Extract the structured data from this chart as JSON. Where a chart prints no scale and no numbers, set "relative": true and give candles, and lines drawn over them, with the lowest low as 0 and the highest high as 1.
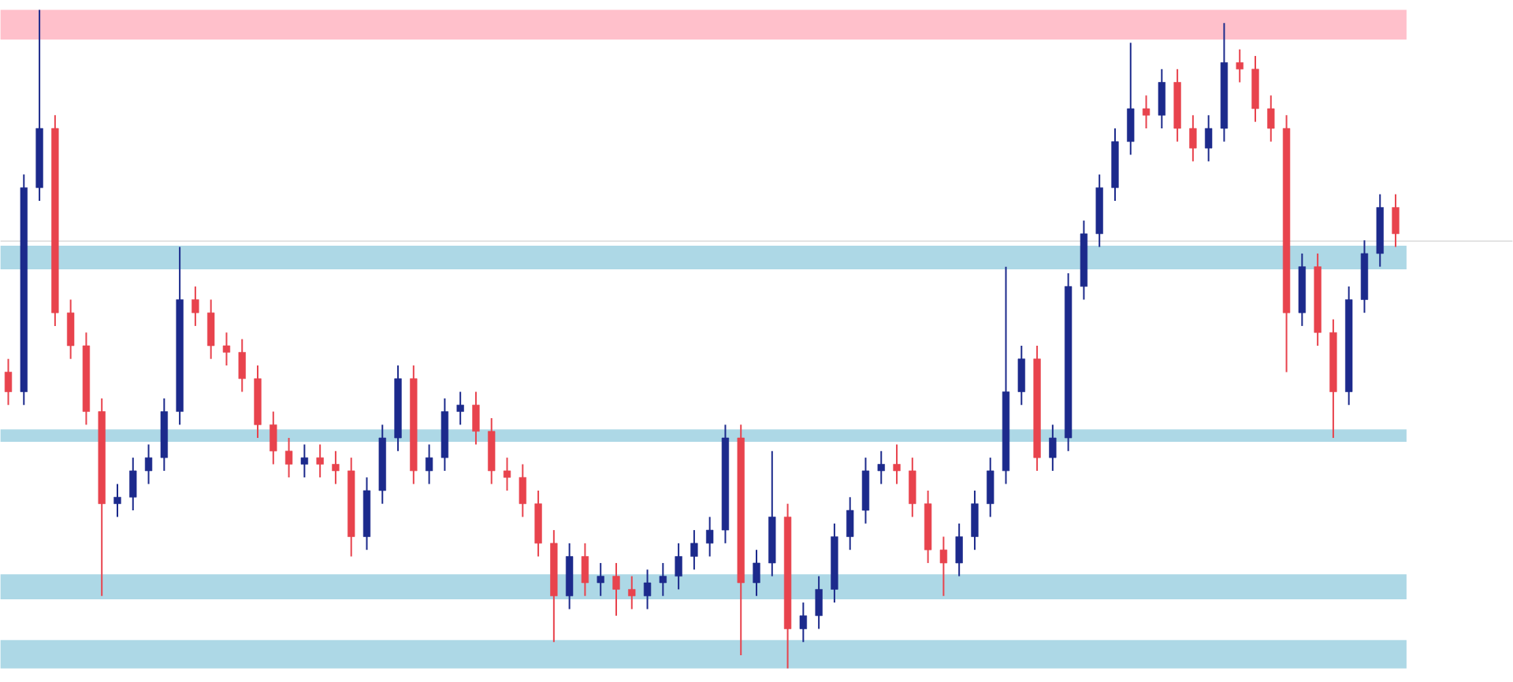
{
  "chart_data": {
    "type": "candlestick",
    "relative": true,
    "categories": [
      null,
      null,
      null,
      null,
      null,
      null,
      null,
      null,
      null,
      null,
      null,
      null,
      null,
      null,
      null,
      null,
      null,
      null,
      null,
      null,
      null,
      null,
      null,
      null,
      null,
      null,
      null,
      null,
      null,
      null,
      null,
      null,
      null,
      null,
      null,
      null,
      null,
      null,
      null,
      null,
      null,
      null,
      null,
      null,
      null,
      null,
      null,
      null,
      null,
      null,
      null,
      null,
      null,
      null,
      null,
      null,
      null,
      null,
      null,
      null,
      null,
      null,
      null,
      null,
      null,
      null,
      null,
      null,
      null,
      null,
      null,
      null,
      null,
      null,
      null,
      null,
      null,
      null,
      null,
      null,
      null,
      null,
      null,
      null,
      null,
      null,
      null,
      null,
      null,
      null
    ],
    "ohlc": [
      [
        0.45,
        0.47,
        0.4,
        0.42
      ],
      [
        0.42,
        0.75,
        0.4,
        0.73
      ],
      [
        0.73,
        1.0,
        0.71,
        0.82
      ],
      [
        0.82,
        0.84,
        0.52,
        0.54
      ],
      [
        0.54,
        0.56,
        0.47,
        0.49
      ],
      [
        0.49,
        0.51,
        0.37,
        0.39
      ],
      [
        0.39,
        0.41,
        0.11,
        0.25
      ],
      [
        0.25,
        0.28,
        0.23,
        0.26
      ],
      [
        0.26,
        0.32,
        0.24,
        0.3
      ],
      [
        0.3,
        0.34,
        0.28,
        0.32
      ],
      [
        0.32,
        0.41,
        0.3,
        0.39
      ],
      [
        0.39,
        0.64,
        0.37,
        0.56
      ],
      [
        0.56,
        0.58,
        0.52,
        0.54
      ],
      [
        0.54,
        0.56,
        0.47,
        0.49
      ],
      [
        0.49,
        0.51,
        0.46,
        0.48
      ],
      [
        0.48,
        0.5,
        0.42,
        0.44
      ],
      [
        0.44,
        0.46,
        0.35,
        0.37
      ],
      [
        0.37,
        0.39,
        0.31,
        0.33
      ],
      [
        0.33,
        0.35,
        0.29,
        0.31
      ],
      [
        0.31,
        0.34,
        0.29,
        0.32
      ],
      [
        0.32,
        0.34,
        0.29,
        0.31
      ],
      [
        0.31,
        0.33,
        0.28,
        0.3
      ],
      [
        0.3,
        0.32,
        0.17,
        0.2
      ],
      [
        0.2,
        0.29,
        0.18,
        0.27
      ],
      [
        0.27,
        0.37,
        0.25,
        0.35
      ],
      [
        0.35,
        0.46,
        0.33,
        0.44
      ],
      [
        0.44,
        0.46,
        0.28,
        0.3
      ],
      [
        0.3,
        0.34,
        0.28,
        0.32
      ],
      [
        0.32,
        0.41,
        0.3,
        0.39
      ],
      [
        0.39,
        0.42,
        0.37,
        0.4
      ],
      [
        0.4,
        0.42,
        0.34,
        0.36
      ],
      [
        0.36,
        0.38,
        0.28,
        0.3
      ],
      [
        0.3,
        0.32,
        0.27,
        0.29
      ],
      [
        0.29,
        0.31,
        0.23,
        0.25
      ],
      [
        0.25,
        0.27,
        0.17,
        0.19
      ],
      [
        0.19,
        0.21,
        0.04,
        0.11
      ],
      [
        0.11,
        0.19,
        0.09,
        0.17
      ],
      [
        0.17,
        0.19,
        0.11,
        0.13
      ],
      [
        0.13,
        0.16,
        0.11,
        0.14
      ],
      [
        0.14,
        0.16,
        0.08,
        0.12
      ],
      [
        0.12,
        0.14,
        0.09,
        0.11
      ],
      [
        0.11,
        0.15,
        0.09,
        0.13
      ],
      [
        0.13,
        0.16,
        0.11,
        0.14
      ],
      [
        0.14,
        0.19,
        0.12,
        0.17
      ],
      [
        0.17,
        0.21,
        0.15,
        0.19
      ],
      [
        0.19,
        0.23,
        0.17,
        0.21
      ],
      [
        0.21,
        0.37,
        0.19,
        0.35
      ],
      [
        0.35,
        0.37,
        0.02,
        0.13
      ],
      [
        0.13,
        0.18,
        0.11,
        0.16
      ],
      [
        0.16,
        0.33,
        0.14,
        0.23
      ],
      [
        0.23,
        0.25,
        0.0,
        0.06
      ],
      [
        0.06,
        0.1,
        0.04,
        0.08
      ],
      [
        0.08,
        0.14,
        0.06,
        0.12
      ],
      [
        0.12,
        0.22,
        0.1,
        0.2
      ],
      [
        0.2,
        0.26,
        0.18,
        0.24
      ],
      [
        0.24,
        0.32,
        0.22,
        0.3
      ],
      [
        0.3,
        0.33,
        0.28,
        0.31
      ],
      [
        0.31,
        0.34,
        0.28,
        0.3
      ],
      [
        0.3,
        0.32,
        0.23,
        0.25
      ],
      [
        0.25,
        0.27,
        0.16,
        0.18
      ],
      [
        0.18,
        0.2,
        0.11,
        0.16
      ],
      [
        0.16,
        0.22,
        0.14,
        0.2
      ],
      [
        0.2,
        0.27,
        0.18,
        0.25
      ],
      [
        0.25,
        0.32,
        0.23,
        0.3
      ],
      [
        0.3,
        0.61,
        0.28,
        0.42
      ],
      [
        0.42,
        0.49,
        0.4,
        0.47
      ],
      [
        0.47,
        0.49,
        0.3,
        0.32
      ],
      [
        0.32,
        0.37,
        0.3,
        0.35
      ],
      [
        0.35,
        0.6,
        0.33,
        0.58
      ],
      [
        0.58,
        0.68,
        0.56,
        0.66
      ],
      [
        0.66,
        0.75,
        0.64,
        0.73
      ],
      [
        0.73,
        0.82,
        0.71,
        0.8
      ],
      [
        0.8,
        0.95,
        0.78,
        0.85
      ],
      [
        0.85,
        0.87,
        0.82,
        0.84
      ],
      [
        0.84,
        0.91,
        0.82,
        0.89
      ],
      [
        0.89,
        0.91,
        0.8,
        0.82
      ],
      [
        0.82,
        0.84,
        0.77,
        0.79
      ],
      [
        0.79,
        0.84,
        0.77,
        0.82
      ],
      [
        0.82,
        0.98,
        0.8,
        0.92
      ],
      [
        0.92,
        0.94,
        0.89,
        0.91
      ],
      [
        0.91,
        0.93,
        0.83,
        0.85
      ],
      [
        0.85,
        0.87,
        0.8,
        0.82
      ],
      [
        0.82,
        0.84,
        0.45,
        0.54
      ],
      [
        0.54,
        0.63,
        0.52,
        0.61
      ],
      [
        0.61,
        0.63,
        0.49,
        0.51
      ],
      [
        0.51,
        0.53,
        0.35,
        0.42
      ],
      [
        0.42,
        0.58,
        0.4,
        0.56
      ],
      [
        0.56,
        0.65,
        0.54,
        0.63
      ],
      [
        0.63,
        0.72,
        0.61,
        0.7
      ],
      [
        0.7,
        0.72,
        0.64,
        0.66
      ]
    ],
    "colors": [
      "#e8434d",
      "#1c2a8c",
      "#1c2a8c",
      "#e8434d",
      "#e8434d",
      "#e8434d",
      "#e8434d",
      "#1c2a8c",
      "#1c2a8c",
      "#1c2a8c",
      "#1c2a8c",
      "#1c2a8c",
      "#e8434d",
      "#e8434d",
      "#e8434d",
      "#e8434d",
      "#e8434d",
      "#e8434d",
      "#e8434d",
      "#1c2a8c",
      "#e8434d",
      "#e8434d",
      "#e8434d",
      "#1c2a8c",
      "#1c2a8c",
      "#1c2a8c",
      "#e8434d",
      "#1c2a8c",
      "#1c2a8c",
      "#1c2a8c",
      "#e8434d",
      "#e8434d",
      "#e8434d",
      "#e8434d",
      "#e8434d",
      "#e8434d",
      "#1c2a8c",
      "#e8434d",
      "#1c2a8c",
      "#e8434d",
      "#e8434d",
      "#1c2a8c",
      "#1c2a8c",
      "#1c2a8c",
      "#1c2a8c",
      "#1c2a8c",
      "#1c2a8c",
      "#e8434d",
      "#1c2a8c",
      "#1c2a8c",
      "#e8434d",
      "#1c2a8c",
      "#1c2a8c",
      "#1c2a8c",
      "#1c2a8c",
      "#1c2a8c",
      "#1c2a8c",
      "#e8434d",
      "#e8434d",
      "#e8434d",
      "#e8434d",
      "#1c2a8c",
      "#1c2a8c",
      "#1c2a8c",
      "#1c2a8c",
      "#1c2a8c",
      "#e8434d",
      "#1c2a8c",
      "#1c2a8c",
      "#1c2a8c",
      "#1c2a8c",
      "#1c2a8c",
      "#1c2a8c",
      "#e8434d",
      "#1c2a8c",
      "#e8434d",
      "#e8434d",
      "#1c2a8c",
      "#1c2a8c",
      "#e8434d",
      "#e8434d",
      "#e8434d",
      "#e8434d",
      "#1c2a8c",
      "#e8434d",
      "#e8434d",
      "#1c2a8c",
      "#1c2a8c",
      "#1c2a8c",
      "#e8434d"
    ],
    "bands": [
      {
        "axis": "y",
        "from": 0.955,
        "to": 1.0,
        "color": "#ffc0cb"
      },
      {
        "axis": "y",
        "from": 0.606,
        "to": 0.642,
        "color": "#add8e6"
      },
      {
        "axis": "y",
        "from": 0.344,
        "to": 0.363,
        "color": "#add8e6"
      },
      {
        "axis": "y",
        "from": 0.105,
        "to": 0.143,
        "color": "#add8e6"
      },
      {
        "axis": "y",
        "from": 0.0,
        "to": 0.043,
        "color": "#add8e6"
      }
    ],
    "ref_lines": [
      {
        "axis": "y",
        "value": 0.649,
        "color": "#d3d3d3"
      }
    ]
  }
}
